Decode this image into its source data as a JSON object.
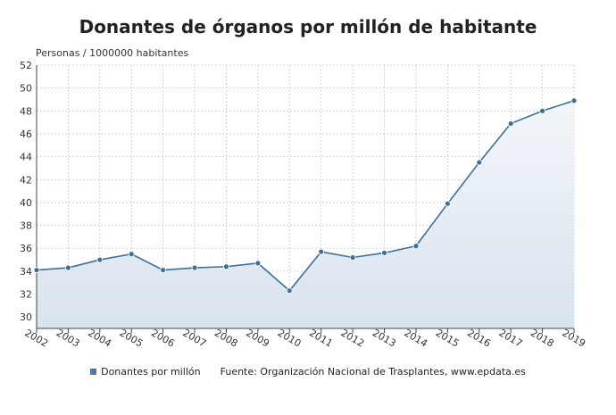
{
  "chart_data": {
    "type": "area",
    "title": "Donantes de órganos por millón de habitante",
    "ylabel": "Personas / 1000000 habitantes",
    "xlabel": "",
    "categories": [
      "2002",
      "2003",
      "2004",
      "2005",
      "2006",
      "2007",
      "2008",
      "2009",
      "2010",
      "2011",
      "2012",
      "2013",
      "2014",
      "2015",
      "2016",
      "2017",
      "2018",
      "2019"
    ],
    "series": [
      {
        "name": "Donantes por millón",
        "values": [
          34.1,
          34.3,
          35.0,
          35.5,
          34.1,
          34.3,
          34.4,
          34.7,
          32.3,
          35.7,
          35.2,
          35.6,
          36.2,
          39.9,
          43.5,
          46.9,
          48.0,
          48.9
        ]
      }
    ],
    "ylim": [
      29,
      52
    ],
    "yticks": [
      30,
      32,
      34,
      36,
      38,
      40,
      42,
      44,
      46,
      48,
      50,
      52
    ],
    "grid": true,
    "legend_position": "bottom",
    "source": "Fuente: Organización Nacional de Trasplantes, www.epdata.es",
    "colors": {
      "line": "#3f6f95",
      "fill_top": "#e8eef5",
      "fill_bottom": "#dbe5ef",
      "grid": "#c9c9c9"
    }
  }
}
